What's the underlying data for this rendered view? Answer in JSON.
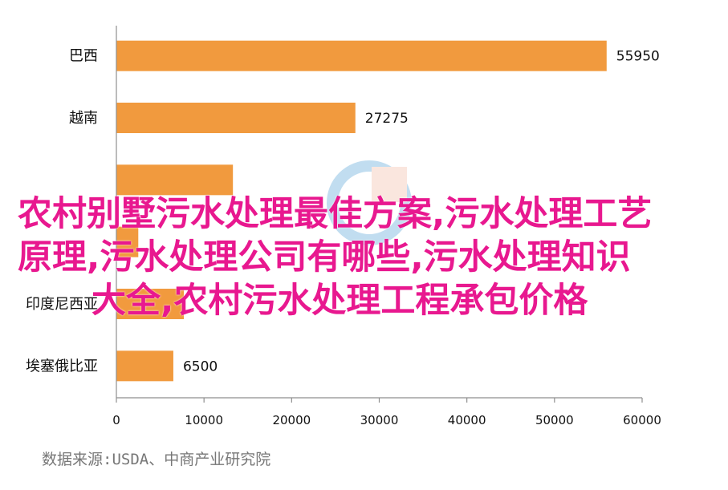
{
  "chart_data": {
    "type": "bar",
    "orientation": "horizontal",
    "categories": [
      "巴西",
      "越南",
      "",
      "",
      "印度尼西亚",
      "埃塞俄比亚"
    ],
    "values": [
      55950,
      27275,
      13300,
      2500,
      7700,
      6500
    ],
    "data_labels": [
      "55950",
      "27275",
      "",
      "",
      "",
      "6500"
    ],
    "xlim": [
      0,
      60000
    ],
    "x_ticks": [
      0,
      10000,
      20000,
      30000,
      40000,
      50000,
      60000
    ],
    "x_tick_labels": [
      "0",
      "10000",
      "20000",
      "30000",
      "40000",
      "50000",
      "60000"
    ],
    "bar_color": "#f19a3e",
    "grid": false
  },
  "source_note": "数据来源:USDA、中商产业研究院",
  "overlay_text": {
    "line1": "农村别墅污水处理最佳方案,污水处理工艺",
    "line2": "原理,污水处理公司有哪些,污水处理知识",
    "line3": "大全,农村污水处理工程承包价格"
  }
}
